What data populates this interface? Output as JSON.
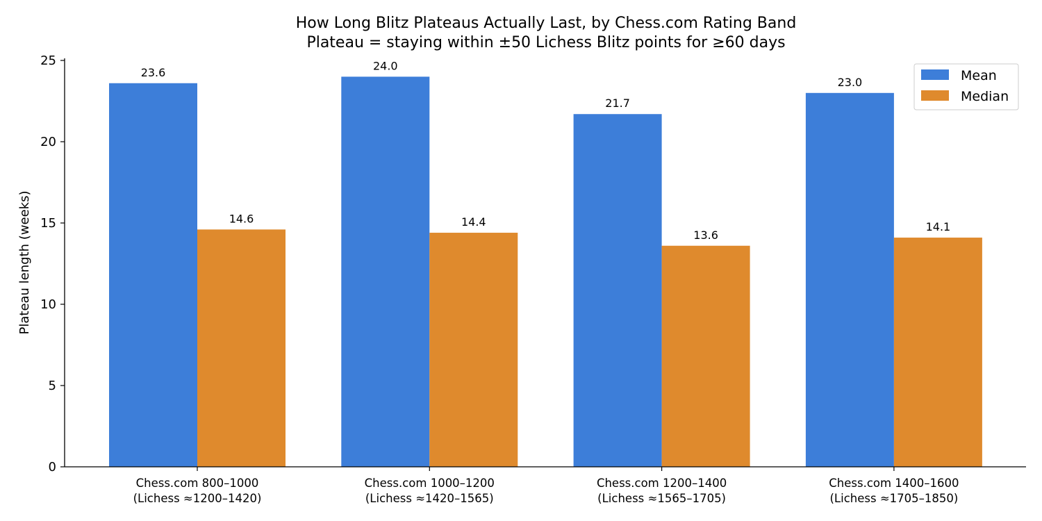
{
  "chart_data": {
    "type": "bar",
    "title": "How Long Blitz Plateaus Actually Last, by Chess.com Rating Band",
    "subtitle": "Plateau = staying within ±50 Lichess Blitz points for ≥60 days",
    "xlabel": "",
    "ylabel": "Plateau length (weeks)",
    "ylim": [
      0,
      25
    ],
    "yticks": [
      0,
      5,
      10,
      15,
      20,
      25
    ],
    "categories": [
      [
        "Chess.com 800–1000",
        "(Lichess ≈1200–1420)"
      ],
      [
        "Chess.com 1000–1200",
        "(Lichess ≈1420–1565)"
      ],
      [
        "Chess.com 1200–1400",
        "(Lichess ≈1565–1705)"
      ],
      [
        "Chess.com 1400–1600",
        "(Lichess ≈1705–1850)"
      ]
    ],
    "series": [
      {
        "name": "Mean",
        "color": "#3d7ed9",
        "values": [
          23.6,
          24.0,
          21.7,
          23.0
        ]
      },
      {
        "name": "Median",
        "color": "#df8a2d",
        "values": [
          14.6,
          14.4,
          13.6,
          14.1
        ]
      }
    ],
    "grid": false,
    "legend": "top-right"
  }
}
